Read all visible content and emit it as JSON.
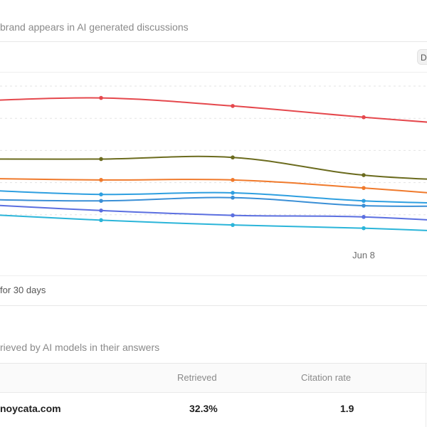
{
  "section1": {
    "subtitle": "brand appears in AI generated discussions",
    "toolbar_button_label": "D",
    "footer_text": "for 30 days"
  },
  "chart_data": {
    "type": "line",
    "x": [
      "",
      "",
      "",
      "Jun 8",
      ""
    ],
    "x_tick_labels": [
      "Jun 8"
    ],
    "grid": "horizontal dashed",
    "series": [
      {
        "color": "#e5484d",
        "values": [
          88,
          90,
          85,
          78,
          72
        ]
      },
      {
        "color": "#6b6b1e",
        "values": [
          52,
          52,
          53,
          42,
          38
        ]
      },
      {
        "color": "#f07a2c",
        "values": [
          40,
          39,
          39,
          34,
          28
        ]
      },
      {
        "color": "#2e9fe0",
        "values": [
          33,
          30,
          31,
          26,
          24
        ]
      },
      {
        "color": "#3a8fd6",
        "values": [
          27,
          26,
          28,
          23,
          23
        ]
      },
      {
        "color": "#5b6fe0",
        "values": [
          24,
          20,
          17,
          16,
          12
        ]
      },
      {
        "color": "#2bb5d9",
        "values": [
          18,
          14,
          11,
          9,
          6
        ]
      }
    ],
    "ylim": [
      0,
      100
    ]
  },
  "section2": {
    "subtitle": "rieved by AI models in their answers",
    "table": {
      "headers": {
        "retrieved": "Retrieved",
        "citation_rate": "Citation rate"
      },
      "rows": [
        {
          "domain": "noycata.com",
          "retrieved": "32.3%",
          "citation_rate": "1.9"
        }
      ]
    }
  }
}
